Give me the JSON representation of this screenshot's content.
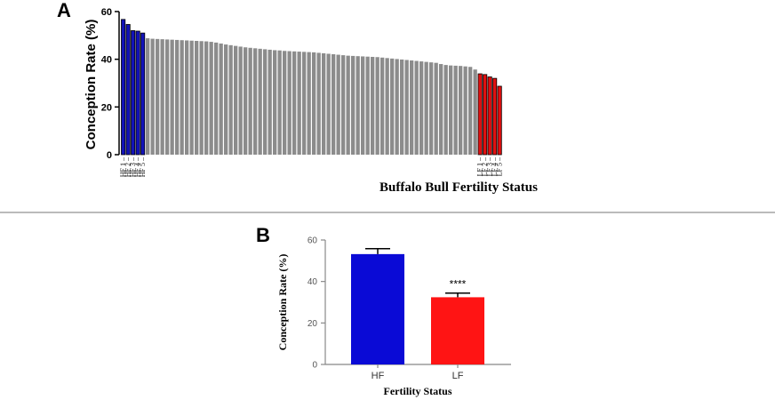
{
  "chart_data": [
    {
      "panel": "A",
      "type": "bar",
      "xlabel": "Buffalo Bull Fertility Status",
      "ylabel": "Conception Rate (%)",
      "ylim": [
        0,
        60
      ],
      "yticks": [
        0,
        20,
        40,
        60
      ],
      "colors": {
        "high": "#1212b8",
        "low": "#e01010",
        "middle": "#8c8c8c"
      },
      "high_fertility": {
        "labels": [
          "HF 1",
          "HF 2",
          "HF 3",
          "HF 4",
          "HF 5"
        ],
        "values": [
          56.7,
          54.6,
          52.0,
          51.8,
          51.0
        ]
      },
      "middle_values": [
        48.8,
        48.6,
        48.5,
        48.4,
        48.3,
        48.2,
        48.1,
        48.0,
        47.9,
        47.8,
        47.7,
        47.6,
        47.5,
        47.3,
        47.0,
        46.6,
        46.2,
        45.9,
        45.6,
        45.3,
        45.0,
        44.8,
        44.6,
        44.4,
        44.2,
        44.0,
        43.8,
        43.7,
        43.5,
        43.4,
        43.3,
        43.2,
        43.1,
        43.0,
        42.9,
        42.7,
        42.5,
        42.3,
        42.1,
        41.9,
        41.7,
        41.5,
        41.4,
        41.3,
        41.2,
        41.1,
        41.0,
        40.9,
        40.7,
        40.5,
        40.3,
        40.1,
        39.9,
        39.7,
        39.5,
        39.3,
        39.1,
        38.9,
        38.7,
        38.5,
        38.0,
        37.6,
        37.4,
        37.3,
        37.2,
        37.0,
        36.8,
        35.7
      ],
      "low_fertility": {
        "labels": [
          "LF 1",
          "LF 2",
          "LF 3",
          "LF 4",
          "LF 5"
        ],
        "values": [
          33.9,
          33.6,
          32.6,
          32.0,
          28.7
        ]
      }
    },
    {
      "panel": "B",
      "type": "bar",
      "xlabel": "Fertility Status",
      "ylabel": "Conception Rate (%)",
      "ylim": [
        0,
        60
      ],
      "yticks": [
        0,
        20,
        40,
        60
      ],
      "categories": [
        "HF",
        "LF"
      ],
      "values": [
        53.2,
        32.4
      ],
      "errors": [
        2.6,
        2.0
      ],
      "colors": [
        "#0a0ad6",
        "#ff1414"
      ],
      "annotations": [
        {
          "category": "LF",
          "text": "****"
        }
      ]
    }
  ]
}
